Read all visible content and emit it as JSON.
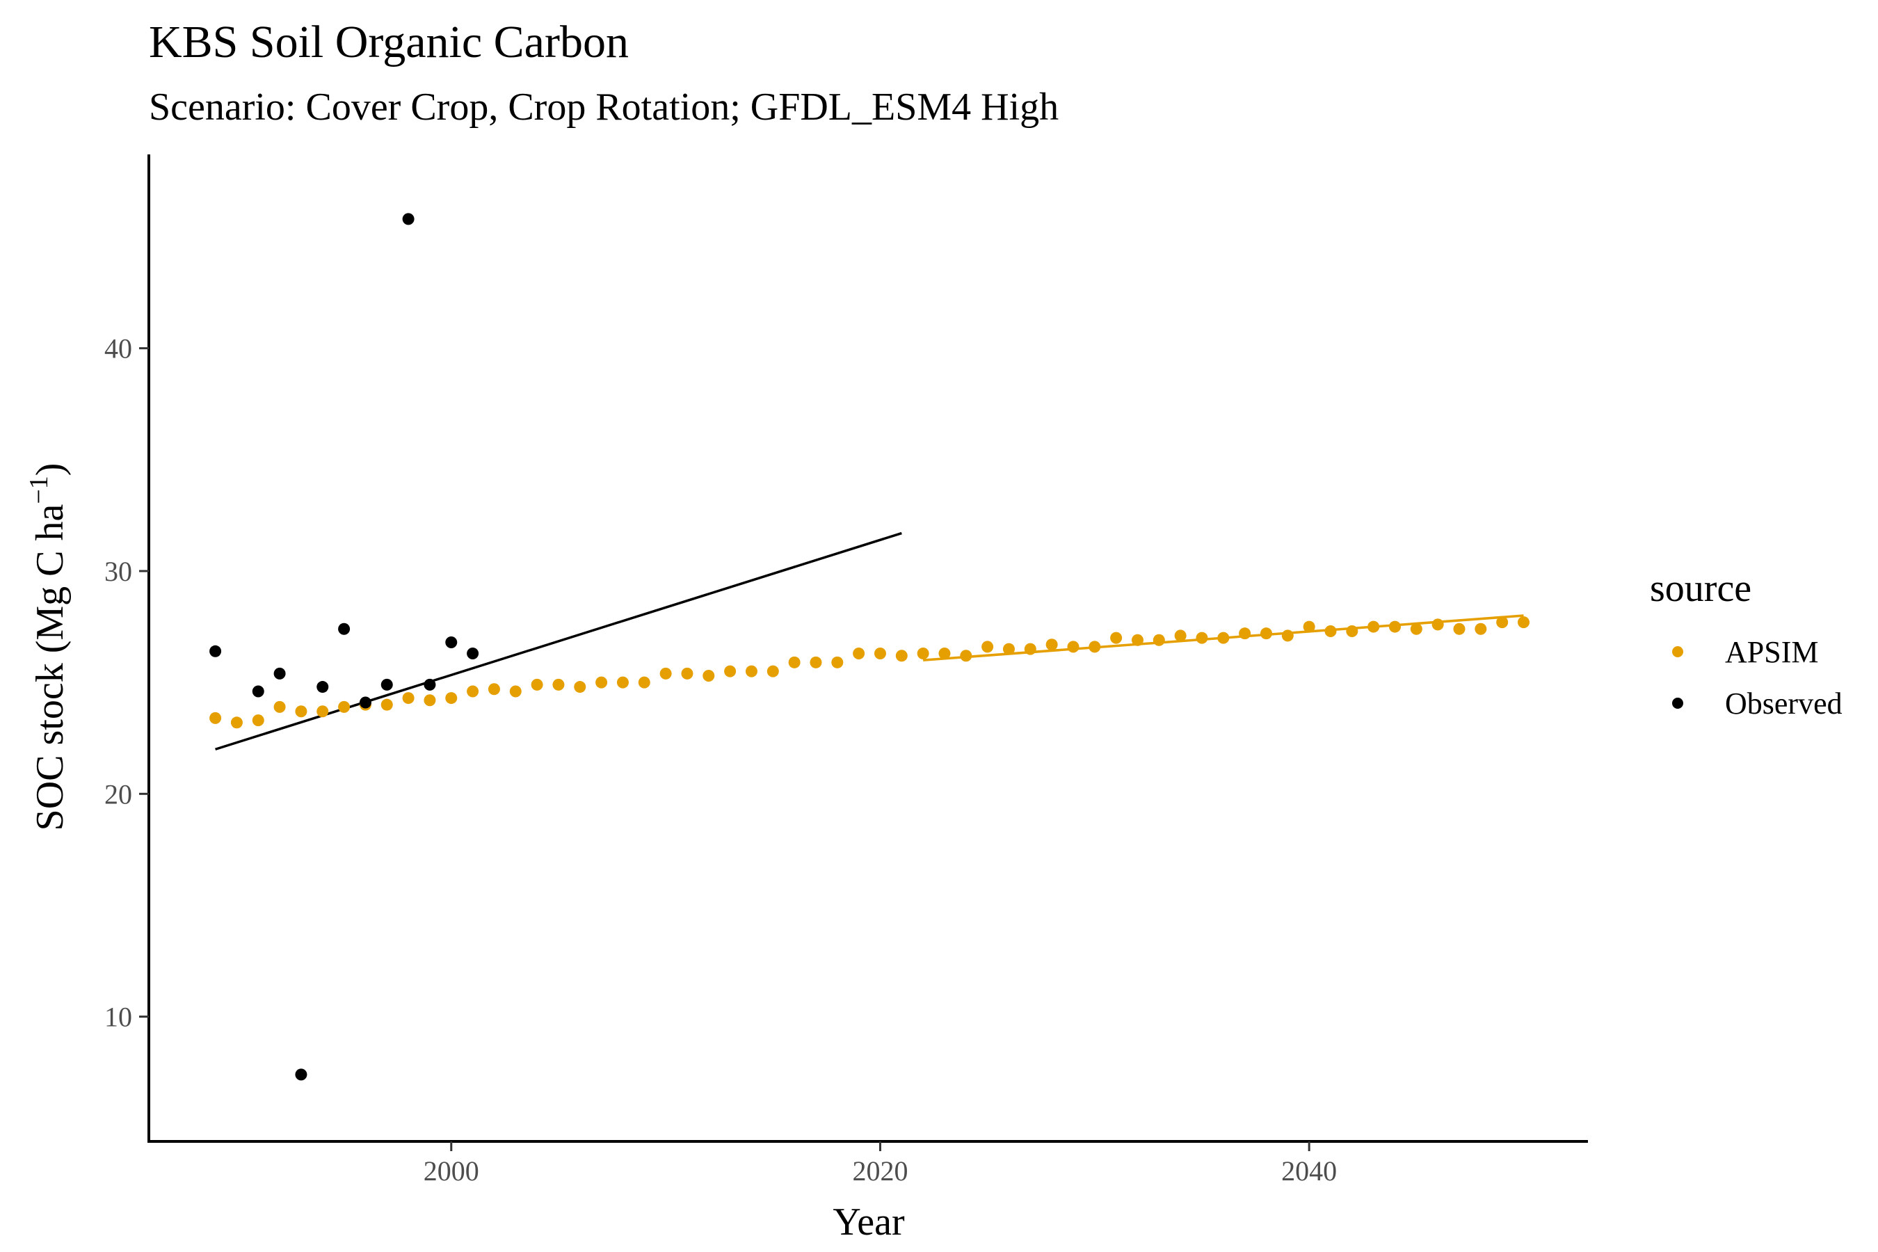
{
  "chart_data": {
    "type": "scatter",
    "title": "KBS Soil Organic Carbon",
    "subtitle": "Scenario: Cover Crop, Crop Rotation; GFDL_ESM4 High",
    "xlabel": "Year",
    "ylabel": "SOC stock (Mg C ha",
    "ylabel_sup": "−1",
    "ylabel_close": ")",
    "xlim": [
      1985.9,
      2053
    ],
    "ylim": [
      4.4,
      48.7
    ],
    "x_ticks": [
      2000,
      2020,
      2040
    ],
    "y_ticks": [
      10,
      20,
      30,
      40
    ],
    "grid": false,
    "legend": {
      "title": "source",
      "position": "right",
      "entries": [
        "APSIM",
        "Observed"
      ]
    },
    "colors": {
      "APSIM": "#E69F00",
      "Observed": "#000000"
    },
    "series": [
      {
        "name": "APSIM",
        "x": [
          1989,
          1990,
          1991,
          1992,
          1993,
          1994,
          1995,
          1996,
          1997,
          1998,
          1999,
          2000,
          2001,
          2002,
          2003,
          2004,
          2005,
          2006,
          2007,
          2008,
          2009,
          2010,
          2011,
          2012,
          2013,
          2014,
          2015,
          2016,
          2017,
          2018,
          2019,
          2020,
          2021,
          2022,
          2023,
          2024,
          2025,
          2026,
          2027,
          2028,
          2029,
          2030,
          2031,
          2032,
          2033,
          2034,
          2035,
          2036,
          2037,
          2038,
          2039,
          2040,
          2041,
          2042,
          2043,
          2044,
          2045,
          2046,
          2047,
          2048,
          2049,
          2050
        ],
        "y": [
          23.4,
          23.2,
          23.3,
          23.9,
          23.7,
          23.7,
          23.9,
          24.0,
          24.0,
          24.3,
          24.2,
          24.3,
          24.6,
          24.7,
          24.6,
          24.9,
          24.9,
          24.8,
          25.0,
          25.0,
          25.0,
          25.4,
          25.4,
          25.3,
          25.5,
          25.5,
          25.5,
          25.9,
          25.9,
          25.9,
          26.3,
          26.3,
          26.2,
          26.3,
          26.3,
          26.2,
          26.6,
          26.5,
          26.5,
          26.7,
          26.6,
          26.6,
          27.0,
          26.9,
          26.9,
          27.1,
          27.0,
          27.0,
          27.2,
          27.2,
          27.1,
          27.5,
          27.3,
          27.3,
          27.5,
          27.5,
          27.4,
          27.6,
          27.4,
          27.4,
          27.7,
          27.7
        ]
      },
      {
        "name": "Observed",
        "x": [
          1989,
          1991,
          1992,
          1993,
          1994,
          1995,
          1996,
          1997,
          1998,
          1999,
          2000,
          2001
        ],
        "y": [
          26.4,
          24.6,
          25.4,
          7.4,
          24.8,
          27.4,
          24.1,
          24.9,
          45.8,
          24.9,
          26.8,
          26.3
        ]
      }
    ],
    "trendlines": [
      {
        "series": "Observed",
        "x": [
          1989,
          2021
        ],
        "y": [
          22.0,
          31.7
        ]
      },
      {
        "series": "APSIM",
        "x": [
          2022,
          2050
        ],
        "y": [
          26.0,
          28.0
        ]
      }
    ]
  }
}
